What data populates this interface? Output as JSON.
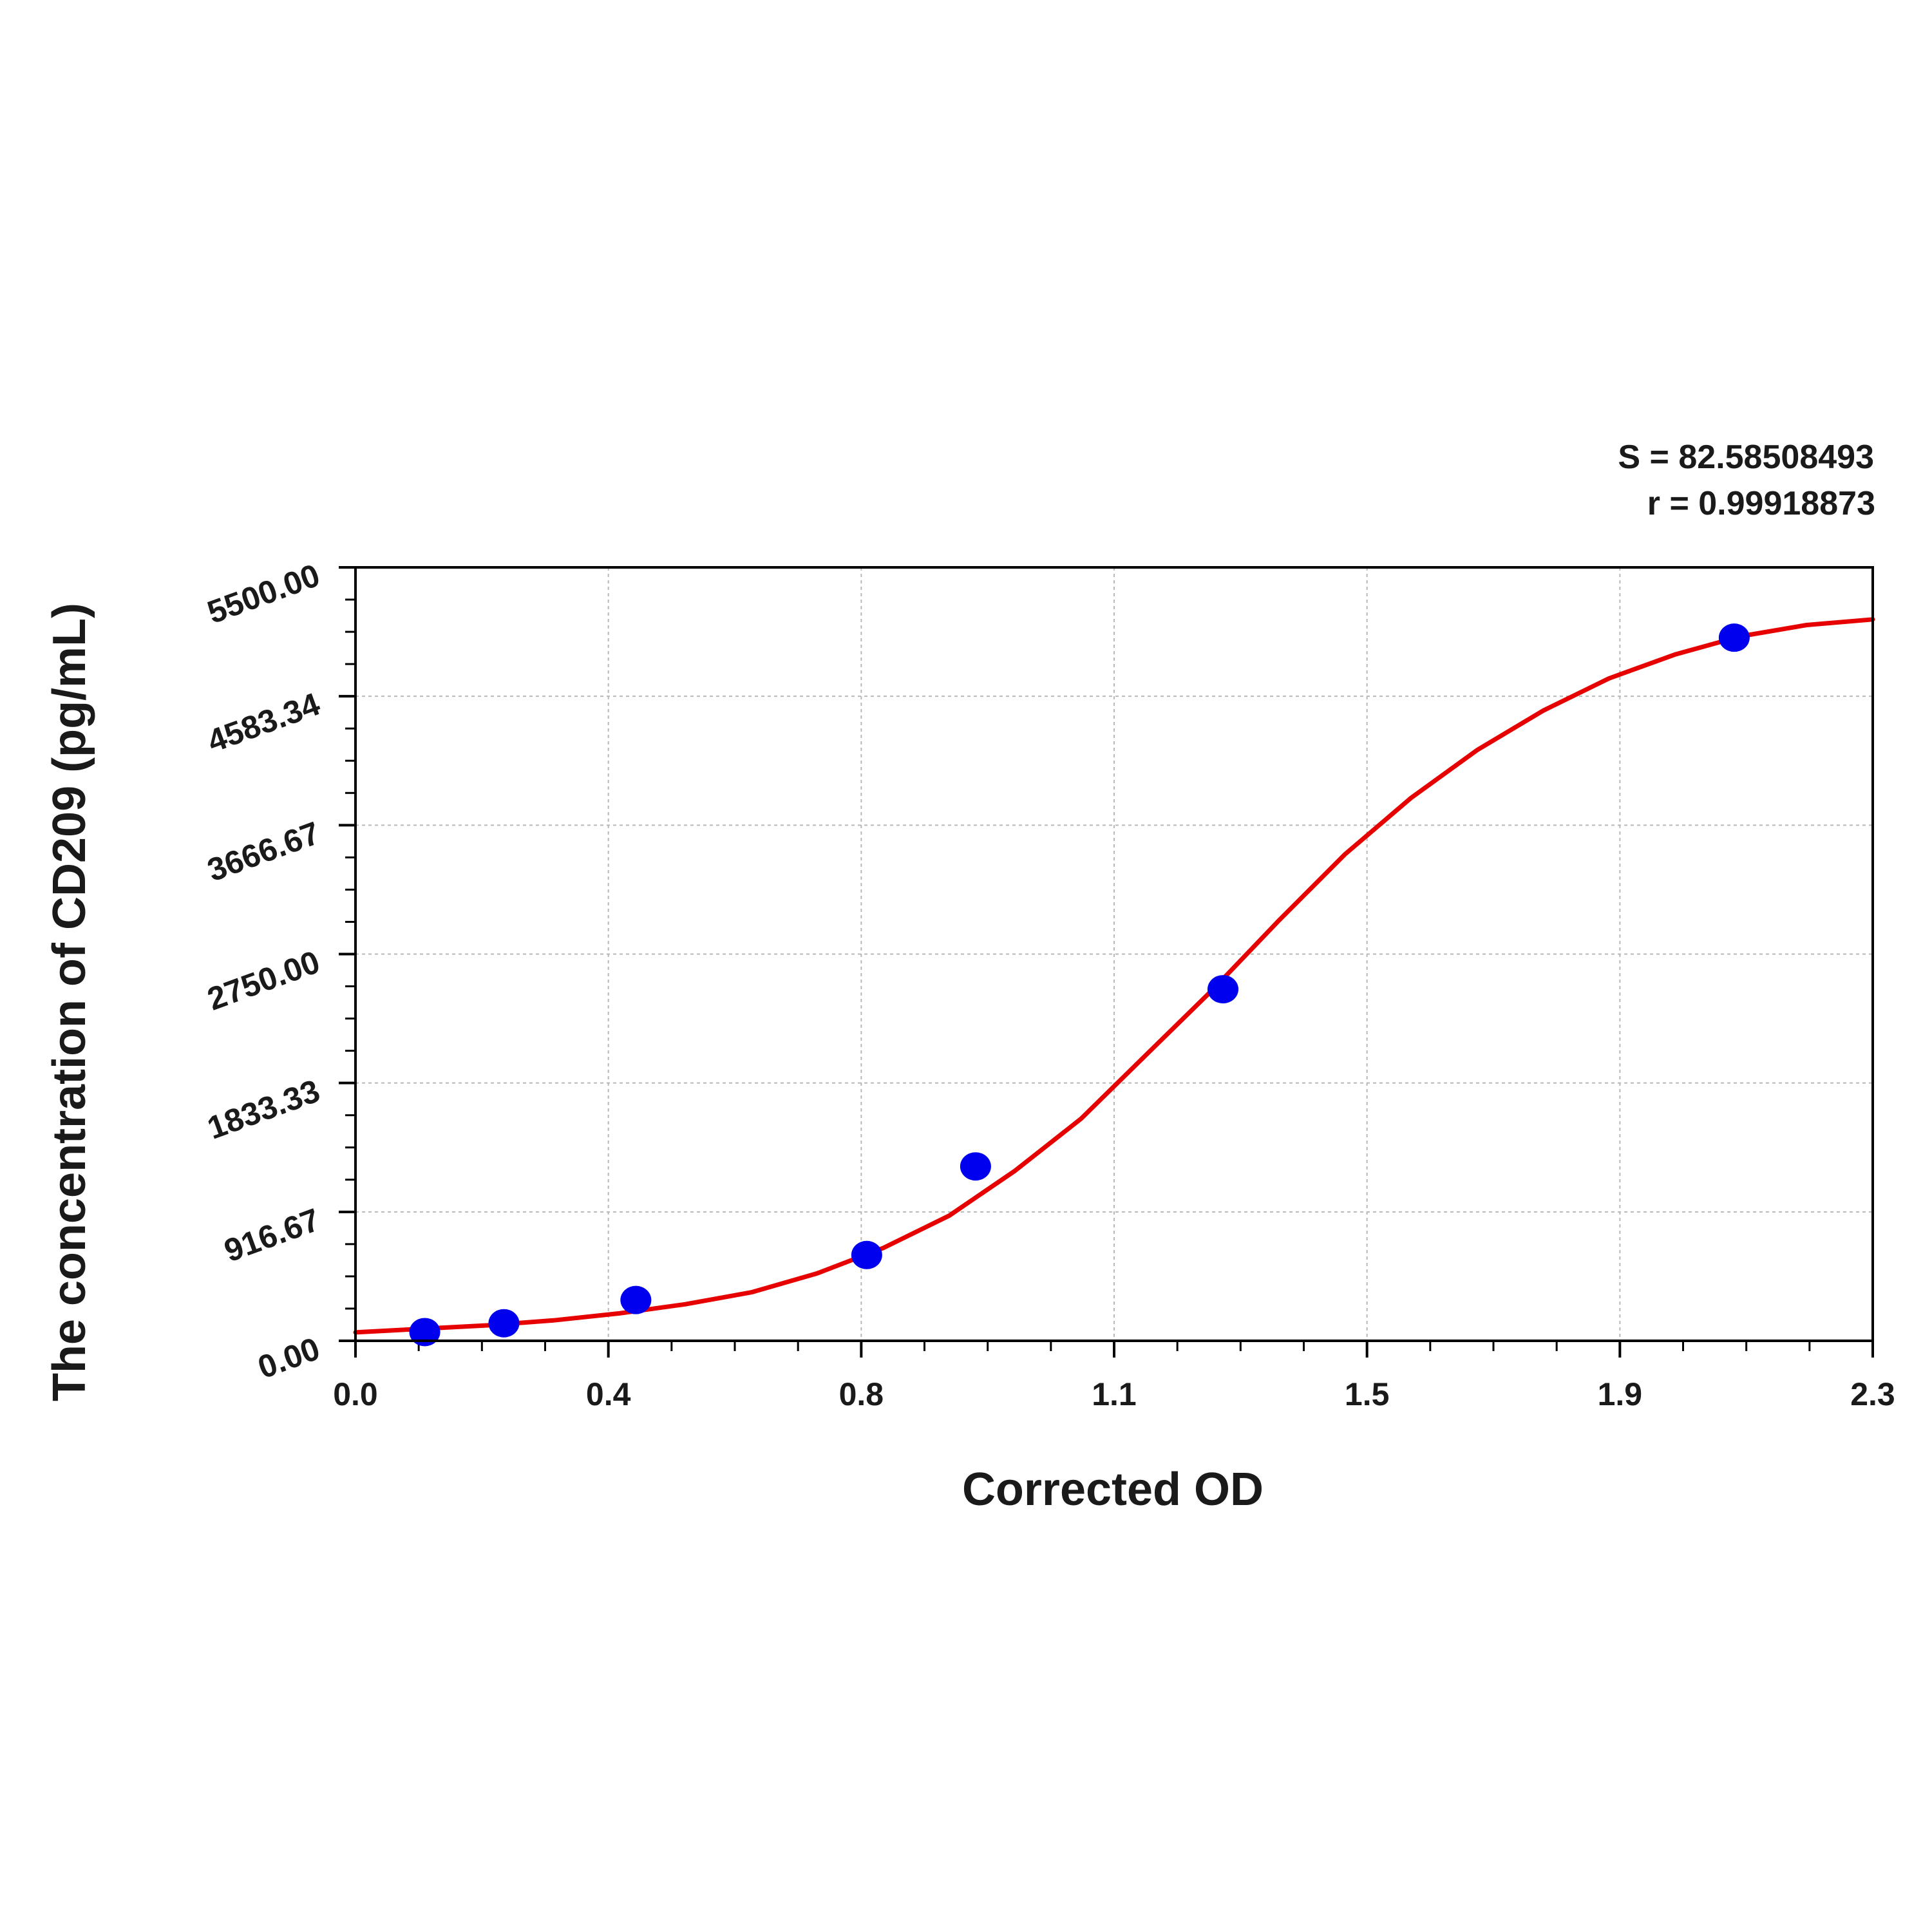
{
  "chart_data": {
    "type": "scatter",
    "xlabel": "Corrected OD",
    "ylabel": "The concentration of CD209 (pg/mL)",
    "xlim": [
      0.0,
      2.3
    ],
    "ylim": [
      0.0,
      5500.0
    ],
    "x_tick_labels": [
      "0.0",
      "0.4",
      "0.8",
      "1.1",
      "1.5",
      "1.9",
      "2.3"
    ],
    "y_tick_labels": [
      "0.00",
      "916.67",
      "1833.33",
      "2750.00",
      "3666.67",
      "4583.34",
      "5500.00"
    ],
    "grid": true,
    "annotations": [
      "S = 82.58508493",
      "r = 0.99918873"
    ],
    "series": [
      {
        "kind": "points",
        "color": "#0000ee",
        "x": [
          0.105,
          0.225,
          0.425,
          0.775,
          0.94,
          1.315,
          2.09
        ],
        "y": [
          62,
          125,
          290,
          610,
          1240,
          2500,
          5000
        ]
      },
      {
        "kind": "fitted-curve",
        "color": "#e60000",
        "x": [
          0.0,
          0.1,
          0.2,
          0.3,
          0.4,
          0.5,
          0.6,
          0.7,
          0.8,
          0.9,
          1.0,
          1.1,
          1.2,
          1.3,
          1.4,
          1.5,
          1.6,
          1.7,
          1.8,
          1.9,
          2.0,
          2.1,
          2.2,
          2.3
        ],
        "y": [
          60,
          85,
          110,
          145,
          195,
          260,
          345,
          480,
          660,
          890,
          1210,
          1580,
          2040,
          2500,
          2990,
          3460,
          3860,
          4200,
          4480,
          4710,
          4880,
          5010,
          5090,
          5130
        ]
      }
    ]
  }
}
